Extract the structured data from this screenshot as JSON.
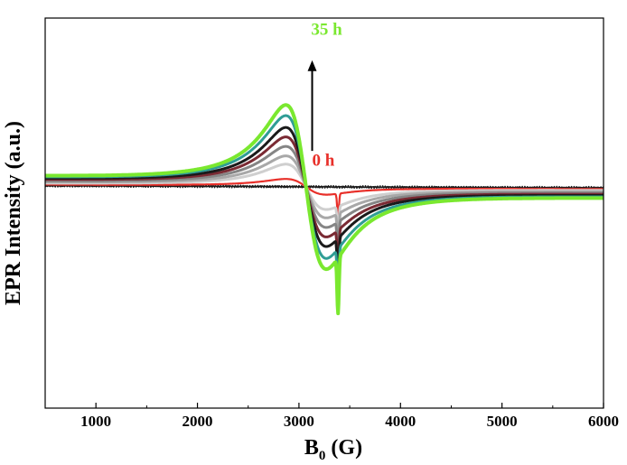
{
  "chart_data": {
    "type": "line",
    "title": "",
    "xlabel": "B",
    "xlabel_sub": "0",
    "xlabel_unit": " (G)",
    "ylabel": "EPR Intensity (a.u.)",
    "xlim": [
      500,
      6000
    ],
    "ylim": [
      -1.05,
      0.8
    ],
    "x_ticks": [
      1000,
      2000,
      3000,
      4000,
      5000,
      6000
    ],
    "y_ticks_shown": false,
    "grid": false,
    "legend": "none",
    "x_center": 3070,
    "width_G": 280,
    "series": [
      {
        "amplitude": 0.0,
        "color": "#1a1a1a",
        "stroke": 1.5
      },
      {
        "amplitude": 0.065,
        "color": "#e8302a",
        "stroke": 2.2
      },
      {
        "amplitude": 0.19,
        "color": "#cfcfcf",
        "stroke": 3
      },
      {
        "amplitude": 0.26,
        "color": "#a8a8a8",
        "stroke": 3
      },
      {
        "amplitude": 0.34,
        "color": "#858585",
        "stroke": 3
      },
      {
        "amplitude": 0.42,
        "color": "#7a2a33",
        "stroke": 3
      },
      {
        "amplitude": 0.5,
        "color": "#1a1a1a",
        "stroke": 3
      },
      {
        "amplitude": 0.6,
        "color": "#2f9d95",
        "stroke": 3
      },
      {
        "amplitude": 0.69,
        "color": "#7ae82f",
        "stroke": 4
      }
    ],
    "annotations": [
      {
        "text": "35 h",
        "x": 3120,
        "y": 0.72,
        "color": "#7ae82f"
      },
      {
        "text": "0 h",
        "x": 3130,
        "y": 0.1,
        "color": "#e8302a"
      }
    ],
    "arrow": {
      "x": 3130,
      "y_from": 0.17,
      "y_to": 0.6,
      "color": "#000000"
    }
  }
}
